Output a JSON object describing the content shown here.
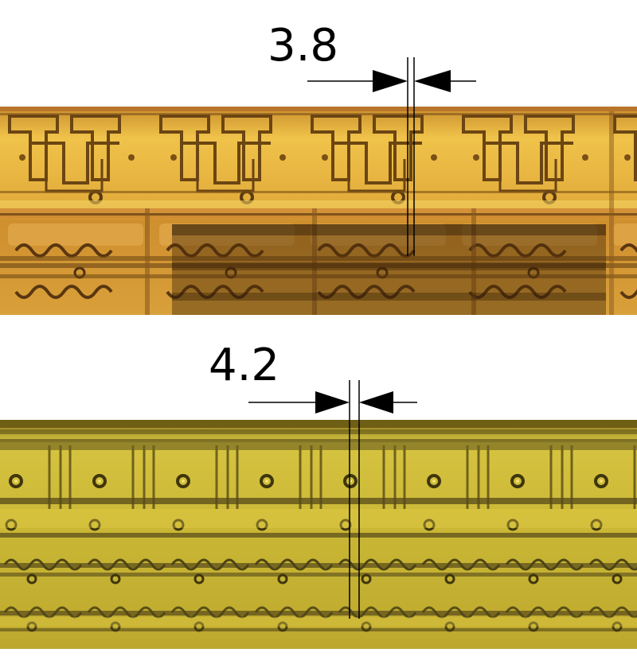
{
  "measurements": [
    {
      "label": "3.8"
    },
    {
      "label": "4.2"
    }
  ],
  "colors": {
    "top_die_base": "#d49b32",
    "top_die_bright": "#f2cd55",
    "top_die_trace": "#5a3a14",
    "top_die_shaded": "#5b3c1a",
    "bottom_die_base": "#b9a42a",
    "bottom_die_bright": "#e6d24a",
    "bottom_die_trace": "#4d4414",
    "marker": "#000000"
  },
  "icons": [
    "arrow-right-icon",
    "arrow-left-icon"
  ]
}
